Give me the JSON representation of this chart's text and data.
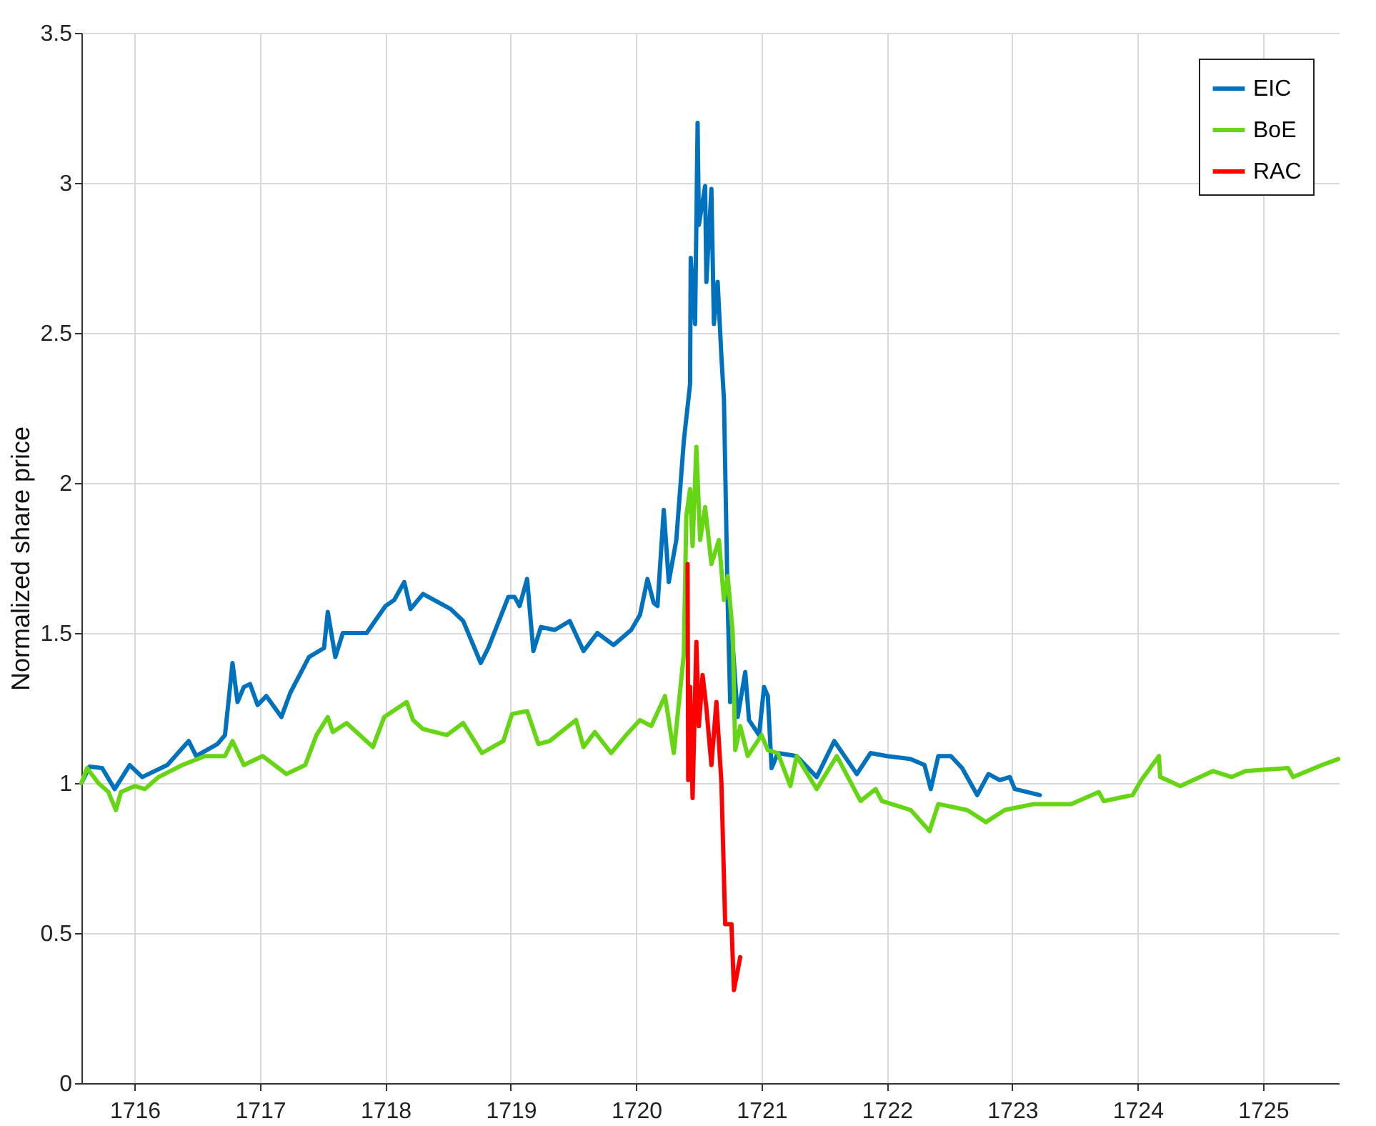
{
  "chart_data": {
    "type": "line",
    "ylabel": "Normalized share price",
    "xlim": [
      1715.575,
      1725.605
    ],
    "xticks": [
      1716,
      1717,
      1718,
      1719,
      1720,
      1721,
      1722,
      1723,
      1724,
      1725
    ],
    "ylim": [
      0,
      3.5
    ],
    "yticks": [
      0,
      0.5,
      1,
      1.5,
      2,
      2.5,
      3,
      3.5
    ],
    "grid": true,
    "legend": "top right",
    "line_style": "solid",
    "series": [
      {
        "name": "EIC",
        "color": "#0072bd",
        "x": [
          1715.575,
          1715.64,
          1715.74,
          1715.84,
          1715.96,
          1716.06,
          1716.26,
          1716.43,
          1716.49,
          1716.66,
          1716.72,
          1716.78,
          1716.82,
          1716.87,
          1716.92,
          1716.98,
          1717.05,
          1717.17,
          1717.24,
          1717.39,
          1717.51,
          1717.54,
          1717.6,
          1717.66,
          1717.85,
          1718.0,
          1718.07,
          1718.15,
          1718.2,
          1718.3,
          1718.52,
          1718.62,
          1718.67,
          1718.76,
          1718.82,
          1718.98,
          1719.03,
          1719.07,
          1719.13,
          1719.18,
          1719.24,
          1719.35,
          1719.47,
          1719.58,
          1719.69,
          1719.82,
          1719.96,
          1720.03,
          1720.09,
          1720.14,
          1720.17,
          1720.22,
          1720.26,
          1720.32,
          1720.38,
          1720.43,
          1720.435,
          1720.47,
          1720.49,
          1720.5,
          1720.55,
          1720.56,
          1720.6,
          1720.62,
          1720.65,
          1720.68,
          1720.7,
          1720.73,
          1720.75,
          1720.77,
          1720.81,
          1720.87,
          1720.9,
          1720.98,
          1721.02,
          1721.05,
          1721.08,
          1721.13,
          1721.28,
          1721.44,
          1721.58,
          1721.76,
          1721.87,
          1722.0,
          1722.19,
          1722.3,
          1722.35,
          1722.41,
          1722.51,
          1722.6,
          1722.72,
          1722.81,
          1722.9,
          1722.98,
          1723.02,
          1723.22
        ],
        "values": [
          1.0,
          1.055,
          1.05,
          0.98,
          1.06,
          1.02,
          1.06,
          1.14,
          1.09,
          1.13,
          1.16,
          1.4,
          1.27,
          1.32,
          1.33,
          1.26,
          1.29,
          1.22,
          1.3,
          1.42,
          1.45,
          1.57,
          1.42,
          1.5,
          1.5,
          1.59,
          1.61,
          1.67,
          1.58,
          1.63,
          1.58,
          1.54,
          1.49,
          1.4,
          1.45,
          1.62,
          1.62,
          1.59,
          1.68,
          1.44,
          1.52,
          1.51,
          1.54,
          1.44,
          1.5,
          1.46,
          1.51,
          1.56,
          1.68,
          1.6,
          1.59,
          1.91,
          1.67,
          1.81,
          2.14,
          2.33,
          2.75,
          2.53,
          3.2,
          2.86,
          2.99,
          2.67,
          2.98,
          2.53,
          2.67,
          2.42,
          2.28,
          1.6,
          1.27,
          1.46,
          1.22,
          1.37,
          1.21,
          1.16,
          1.32,
          1.29,
          1.05,
          1.1,
          1.09,
          1.02,
          1.14,
          1.03,
          1.1,
          1.09,
          1.08,
          1.06,
          0.98,
          1.09,
          1.09,
          1.05,
          0.96,
          1.03,
          1.01,
          1.02,
          0.98,
          0.96
        ]
      },
      {
        "name": "BoE",
        "color": "#66d614",
        "x": [
          1715.575,
          1715.62,
          1715.71,
          1715.79,
          1715.85,
          1715.89,
          1716.0,
          1716.08,
          1716.19,
          1716.38,
          1716.56,
          1716.72,
          1716.78,
          1716.87,
          1717.02,
          1717.21,
          1717.36,
          1717.45,
          1717.54,
          1717.58,
          1717.69,
          1717.9,
          1717.99,
          1718.17,
          1718.22,
          1718.3,
          1718.49,
          1718.62,
          1718.77,
          1718.94,
          1719.01,
          1719.13,
          1719.22,
          1719.31,
          1719.52,
          1719.58,
          1719.67,
          1719.8,
          1719.92,
          1720.03,
          1720.12,
          1720.23,
          1720.3,
          1720.38,
          1720.4,
          1720.43,
          1720.45,
          1720.48,
          1720.51,
          1720.55,
          1720.6,
          1720.66,
          1720.7,
          1720.73,
          1720.77,
          1720.79,
          1720.83,
          1720.89,
          1721.0,
          1721.05,
          1721.13,
          1721.23,
          1721.28,
          1721.44,
          1721.6,
          1721.79,
          1721.91,
          1721.96,
          1722.19,
          1722.34,
          1722.41,
          1722.64,
          1722.79,
          1722.94,
          1723.17,
          1723.47,
          1723.69,
          1723.73,
          1723.96,
          1724.03,
          1724.17,
          1724.18,
          1724.34,
          1724.6,
          1724.75,
          1724.86,
          1725.2,
          1725.24,
          1725.47,
          1725.6
        ],
        "values": [
          1.0,
          1.05,
          1.0,
          0.97,
          0.91,
          0.97,
          0.99,
          0.98,
          1.02,
          1.06,
          1.09,
          1.09,
          1.14,
          1.06,
          1.09,
          1.03,
          1.06,
          1.16,
          1.22,
          1.17,
          1.2,
          1.12,
          1.22,
          1.27,
          1.21,
          1.18,
          1.16,
          1.2,
          1.1,
          1.14,
          1.23,
          1.24,
          1.13,
          1.14,
          1.21,
          1.12,
          1.17,
          1.1,
          1.16,
          1.21,
          1.19,
          1.29,
          1.1,
          1.43,
          1.89,
          1.98,
          1.79,
          2.12,
          1.81,
          1.92,
          1.73,
          1.81,
          1.61,
          1.69,
          1.5,
          1.11,
          1.19,
          1.09,
          1.16,
          1.11,
          1.1,
          0.99,
          1.09,
          0.98,
          1.09,
          0.94,
          0.98,
          0.94,
          0.91,
          0.84,
          0.93,
          0.91,
          0.87,
          0.91,
          0.93,
          0.93,
          0.97,
          0.94,
          0.96,
          1.01,
          1.09,
          1.02,
          0.99,
          1.04,
          1.02,
          1.04,
          1.05,
          1.02,
          1.06,
          1.08
        ]
      },
      {
        "name": "RAC",
        "color": "#ff0000",
        "x": [
          1720.41,
          1720.415,
          1720.43,
          1720.45,
          1720.48,
          1720.5,
          1720.53,
          1720.56,
          1720.6,
          1720.64,
          1720.68,
          1720.71,
          1720.76,
          1720.78,
          1720.83
        ],
        "values": [
          1.73,
          1.01,
          1.32,
          0.95,
          1.47,
          1.19,
          1.36,
          1.25,
          1.06,
          1.27,
          1.0,
          0.53,
          0.53,
          0.31,
          0.42
        ]
      }
    ]
  }
}
